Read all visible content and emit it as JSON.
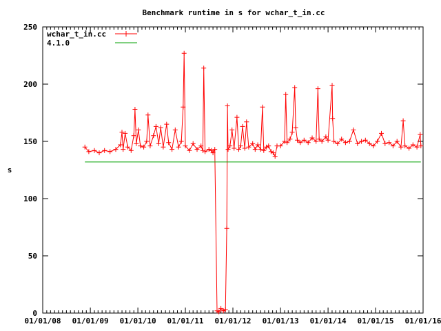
{
  "chart_data": {
    "type": "line",
    "title": "Benchmark runtime in s for wchar_t_in.cc",
    "xlabel": "",
    "ylabel": "s",
    "xlim": [
      "2008-01-01",
      "2016-01-01"
    ],
    "ylim": [
      0,
      250
    ],
    "x_ticks": [
      "01/01/08",
      "01/01/09",
      "01/01/10",
      "01/01/11",
      "01/01/12",
      "01/01/13",
      "01/01/14",
      "01/01/15",
      "01/01/16"
    ],
    "y_ticks": [
      "0",
      "50",
      "100",
      "150",
      "200",
      "250"
    ],
    "y_tick_values": [
      0,
      50,
      100,
      150,
      200,
      250
    ],
    "grid": false,
    "legend_position": "top-left",
    "series": [
      {
        "name": "wchar_t_in.cc",
        "color": "#ff0000",
        "marker": "plus",
        "points": [
          [
            "2008-11-20",
            145
          ],
          [
            "2008-12-20",
            141
          ],
          [
            "2009-02-01",
            142
          ],
          [
            "2009-03-10",
            140
          ],
          [
            "2009-04-20",
            142
          ],
          [
            "2009-06-01",
            141
          ],
          [
            "2009-07-15",
            143
          ],
          [
            "2009-08-20",
            147
          ],
          [
            "2009-09-01",
            158
          ],
          [
            "2009-09-10",
            143
          ],
          [
            "2009-09-25",
            157
          ],
          [
            "2009-10-15",
            145
          ],
          [
            "2009-11-10",
            142
          ],
          [
            "2009-12-01",
            155
          ],
          [
            "2009-12-10",
            178
          ],
          [
            "2009-12-20",
            148
          ],
          [
            "2010-01-05",
            160
          ],
          [
            "2010-01-20",
            146
          ],
          [
            "2010-02-15",
            145
          ],
          [
            "2010-03-10",
            150
          ],
          [
            "2010-03-20",
            173
          ],
          [
            "2010-04-05",
            146
          ],
          [
            "2010-05-01",
            155
          ],
          [
            "2010-05-20",
            163
          ],
          [
            "2010-06-10",
            148
          ],
          [
            "2010-06-25",
            162
          ],
          [
            "2010-07-15",
            145
          ],
          [
            "2010-08-10",
            165
          ],
          [
            "2010-08-25",
            149
          ],
          [
            "2010-09-20",
            143
          ],
          [
            "2010-10-15",
            160
          ],
          [
            "2010-11-10",
            145
          ],
          [
            "2010-12-01",
            150
          ],
          [
            "2010-12-15",
            180
          ],
          [
            "2010-12-22",
            227
          ],
          [
            "2011-01-01",
            146
          ],
          [
            "2011-02-01",
            142
          ],
          [
            "2011-03-01",
            148
          ],
          [
            "2011-04-01",
            143
          ],
          [
            "2011-05-01",
            146
          ],
          [
            "2011-05-15",
            142
          ],
          [
            "2011-05-22",
            214
          ],
          [
            "2011-06-01",
            141
          ],
          [
            "2011-07-01",
            143
          ],
          [
            "2011-07-20",
            142
          ],
          [
            "2011-08-01",
            140
          ],
          [
            "2011-08-15",
            143
          ],
          [
            "2011-09-01",
            2
          ],
          [
            "2011-09-15",
            1
          ],
          [
            "2011-10-01",
            4
          ],
          [
            "2011-10-20",
            2
          ],
          [
            "2011-11-05",
            3
          ],
          [
            "2011-11-15",
            74
          ],
          [
            "2011-11-20",
            181
          ],
          [
            "2011-11-25",
            143
          ],
          [
            "2011-12-10",
            146
          ],
          [
            "2011-12-25",
            160
          ],
          [
            "2012-01-10",
            144
          ],
          [
            "2012-02-01",
            171
          ],
          [
            "2012-02-15",
            143
          ],
          [
            "2012-03-01",
            146
          ],
          [
            "2012-03-15",
            163
          ],
          [
            "2012-04-01",
            144
          ],
          [
            "2012-04-15",
            167
          ],
          [
            "2012-05-01",
            145
          ],
          [
            "2012-06-01",
            148
          ],
          [
            "2012-06-20",
            143
          ],
          [
            "2012-07-10",
            147
          ],
          [
            "2012-08-01",
            143
          ],
          [
            "2012-08-15",
            180
          ],
          [
            "2012-08-25",
            142
          ],
          [
            "2012-09-15",
            145
          ],
          [
            "2012-10-01",
            146
          ],
          [
            "2012-10-20",
            141
          ],
          [
            "2012-11-05",
            140
          ],
          [
            "2012-11-20",
            137
          ],
          [
            "2012-12-05",
            146
          ],
          [
            "2013-01-01",
            146
          ],
          [
            "2013-02-01",
            150
          ],
          [
            "2013-02-10",
            191
          ],
          [
            "2013-02-20",
            149
          ],
          [
            "2013-03-15",
            152
          ],
          [
            "2013-04-01",
            158
          ],
          [
            "2013-04-20",
            197
          ],
          [
            "2013-04-28",
            162
          ],
          [
            "2013-05-10",
            151
          ],
          [
            "2013-06-01",
            149
          ],
          [
            "2013-07-01",
            151
          ],
          [
            "2013-08-01",
            149
          ],
          [
            "2013-09-01",
            153
          ],
          [
            "2013-10-01",
            150
          ],
          [
            "2013-10-15",
            196
          ],
          [
            "2013-10-25",
            152
          ],
          [
            "2013-11-15",
            150
          ],
          [
            "2013-12-15",
            154
          ],
          [
            "2014-01-01",
            151
          ],
          [
            "2014-02-01",
            199
          ],
          [
            "2014-02-05",
            170
          ],
          [
            "2014-02-15",
            150
          ],
          [
            "2014-03-15",
            148
          ],
          [
            "2014-04-15",
            152
          ],
          [
            "2014-05-15",
            149
          ],
          [
            "2014-06-15",
            150
          ],
          [
            "2014-07-15",
            160
          ],
          [
            "2014-08-15",
            148
          ],
          [
            "2014-09-15",
            150
          ],
          [
            "2014-10-15",
            151
          ],
          [
            "2014-11-15",
            148
          ],
          [
            "2014-12-15",
            146
          ],
          [
            "2015-01-15",
            150
          ],
          [
            "2015-02-15",
            157
          ],
          [
            "2015-03-15",
            148
          ],
          [
            "2015-04-15",
            149
          ],
          [
            "2015-05-15",
            146
          ],
          [
            "2015-06-15",
            150
          ],
          [
            "2015-07-15",
            145
          ],
          [
            "2015-08-01",
            168
          ],
          [
            "2015-08-15",
            146
          ],
          [
            "2015-09-15",
            144
          ],
          [
            "2015-10-15",
            147
          ],
          [
            "2015-11-15",
            145
          ],
          [
            "2015-12-10",
            156
          ],
          [
            "2015-12-15",
            146
          ]
        ]
      },
      {
        "name": "4.1.0",
        "color": "#00a000",
        "marker": "none",
        "points": [
          [
            "2008-11-20",
            132
          ],
          [
            "2015-12-15",
            132
          ]
        ]
      }
    ]
  }
}
